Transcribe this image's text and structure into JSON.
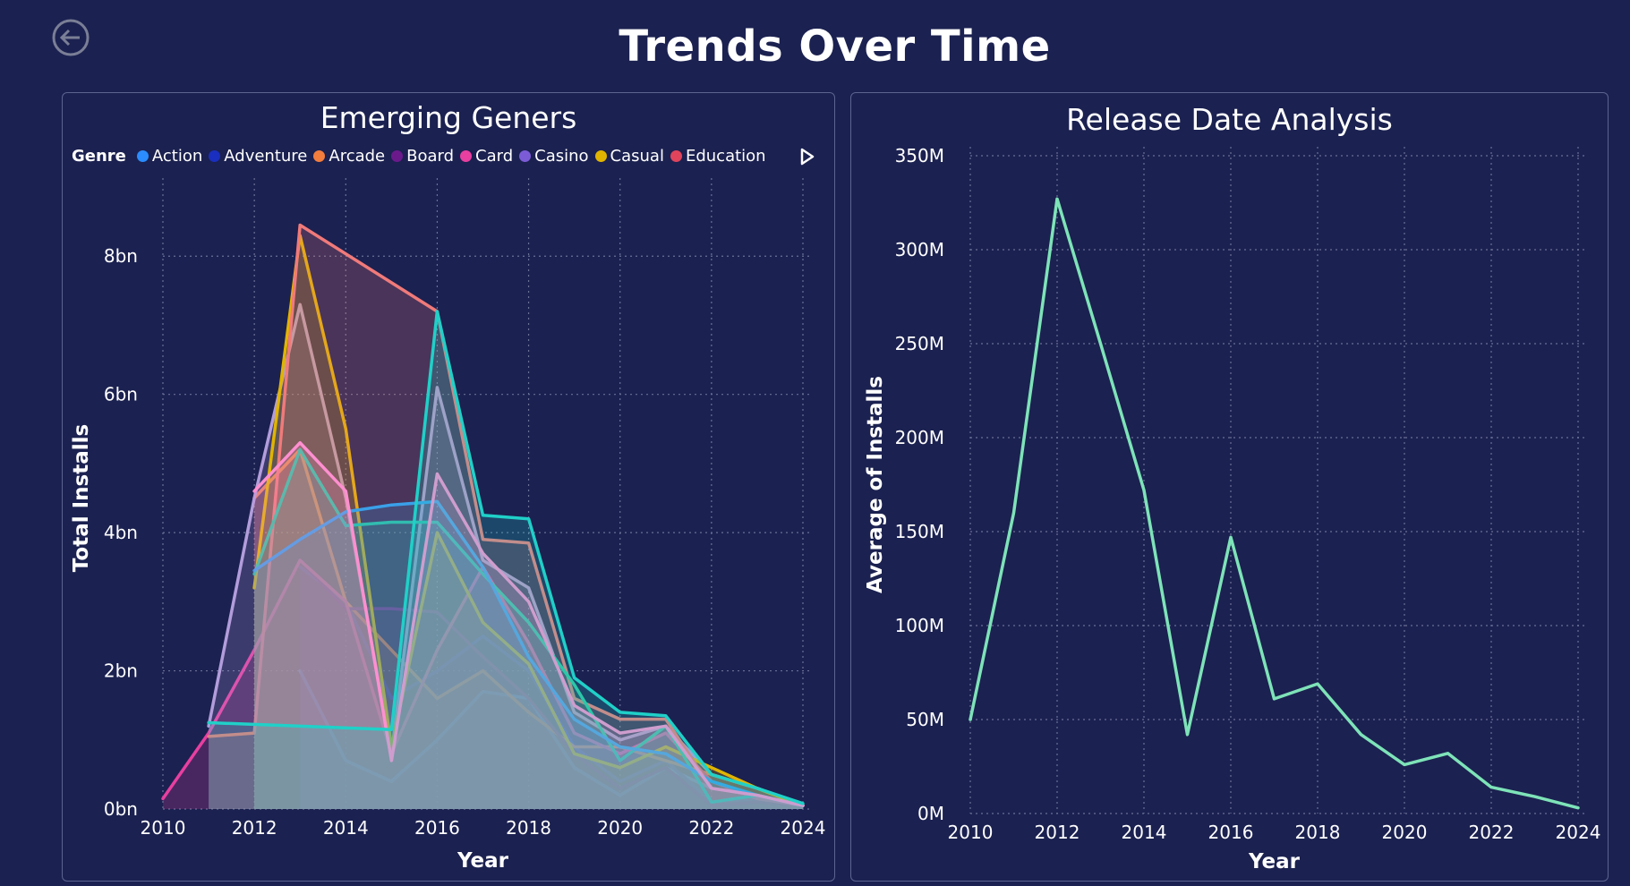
{
  "page": {
    "title": "Trends Over Time"
  },
  "icons": {
    "back": "back-arrow-icon",
    "legend_next": "play-right-icon"
  },
  "colors": {
    "background": "#1b2150",
    "panel_border": "#5d648f",
    "line_right": "#7ee3b8"
  },
  "chart_data": [
    {
      "type": "area",
      "title": "Emerging Geners",
      "xlabel": "Year",
      "ylabel": "Total Installs",
      "xlim": [
        2010,
        2024
      ],
      "ylim": [
        0,
        9
      ],
      "y_unit": "bn",
      "x_ticks": [
        "2010",
        "2012",
        "2014",
        "2016",
        "2018",
        "2020",
        "2022",
        "2024"
      ],
      "y_ticks": [
        "0bn",
        "2bn",
        "4bn",
        "6bn",
        "8bn"
      ],
      "grid": true,
      "legend": {
        "title": "Genre",
        "position": "top-left",
        "items": [
          {
            "name": "Action",
            "color": "#2a8cff"
          },
          {
            "name": "Adventure",
            "color": "#1a2fbf"
          },
          {
            "name": "Arcade",
            "color": "#f27d3d"
          },
          {
            "name": "Board",
            "color": "#6b1a8c"
          },
          {
            "name": "Card",
            "color": "#e83fa0"
          },
          {
            "name": "Casino",
            "color": "#7b5cd6"
          },
          {
            "name": "Casual",
            "color": "#e0b400"
          },
          {
            "name": "Education",
            "color": "#e0445c"
          }
        ]
      },
      "series": [
        {
          "name": "Action",
          "color": "#2a8cff",
          "points": [
            [
              2013,
              2.0
            ],
            [
              2014,
              0.7
            ],
            [
              2015,
              0.4
            ],
            [
              2016,
              1.0
            ],
            [
              2017,
              1.7
            ],
            [
              2018,
              1.6
            ],
            [
              2019,
              0.6
            ],
            [
              2020,
              0.2
            ],
            [
              2021,
              0.6
            ],
            [
              2022,
              0.3
            ],
            [
              2023,
              0.2
            ],
            [
              2024,
              0.05
            ]
          ]
        },
        {
          "name": "Adventure",
          "color": "#1a2fbf",
          "points": [
            [
              2013,
              3.5
            ],
            [
              2014,
              3.0
            ],
            [
              2015,
              1.6
            ],
            [
              2016,
              2.0
            ],
            [
              2017,
              2.5
            ],
            [
              2018,
              2.0
            ],
            [
              2019,
              0.9
            ],
            [
              2020,
              0.4
            ],
            [
              2021,
              0.7
            ],
            [
              2022,
              0.1
            ],
            [
              2023,
              0.15
            ],
            [
              2024,
              0.05
            ]
          ]
        },
        {
          "name": "Arcade",
          "color": "#f27d3d",
          "points": [
            [
              2012,
              4.5
            ],
            [
              2013,
              5.2
            ],
            [
              2014,
              3.0
            ],
            [
              2015,
              2.3
            ],
            [
              2016,
              1.6
            ],
            [
              2017,
              2.0
            ],
            [
              2018,
              1.4
            ],
            [
              2019,
              0.9
            ],
            [
              2020,
              0.9
            ],
            [
              2021,
              0.7
            ],
            [
              2022,
              0.5
            ],
            [
              2023,
              0.3
            ],
            [
              2024,
              0.05
            ]
          ]
        },
        {
          "name": "Board",
          "color": "#6b1a8c",
          "points": [
            [
              2013,
              3.6
            ],
            [
              2014,
              2.9
            ],
            [
              2015,
              2.9
            ],
            [
              2016,
              2.85
            ],
            [
              2017,
              2.2
            ],
            [
              2018,
              1.6
            ],
            [
              2019,
              0.8
            ],
            [
              2020,
              0.3
            ],
            [
              2021,
              0.6
            ],
            [
              2022,
              0.05
            ],
            [
              2023,
              0.1
            ],
            [
              2024,
              0.05
            ]
          ]
        },
        {
          "name": "Card",
          "color": "#e83fa0",
          "points": [
            [
              2010,
              0.15
            ],
            [
              2011,
              1.1
            ],
            [
              2012,
              2.3
            ],
            [
              2013,
              3.6
            ],
            [
              2014,
              3.0
            ],
            [
              2015,
              0.8
            ],
            [
              2016,
              2.3
            ],
            [
              2017,
              3.5
            ],
            [
              2018,
              2.4
            ],
            [
              2019,
              1.1
            ],
            [
              2020,
              0.8
            ],
            [
              2021,
              1.1
            ],
            [
              2022,
              0.4
            ],
            [
              2023,
              0.15
            ],
            [
              2024,
              0.05
            ]
          ]
        },
        {
          "name": "Casino",
          "color": "#b39ddb",
          "points": [
            [
              2011,
              1.2
            ],
            [
              2012,
              4.5
            ],
            [
              2013,
              7.3
            ],
            [
              2014,
              4.5
            ],
            [
              2015,
              0.8
            ],
            [
              2016,
              6.1
            ],
            [
              2017,
              3.6
            ],
            [
              2018,
              3.2
            ],
            [
              2019,
              1.4
            ],
            [
              2020,
              1.0
            ],
            [
              2021,
              1.2
            ],
            [
              2022,
              0.5
            ],
            [
              2023,
              0.3
            ],
            [
              2024,
              0.05
            ]
          ]
        },
        {
          "name": "Casual",
          "color": "#e0b400",
          "points": [
            [
              2012,
              3.2
            ],
            [
              2013,
              8.3
            ],
            [
              2014,
              5.5
            ],
            [
              2015,
              0.9
            ],
            [
              2016,
              4.0
            ],
            [
              2017,
              2.7
            ],
            [
              2018,
              2.1
            ],
            [
              2019,
              0.8
            ],
            [
              2020,
              0.6
            ],
            [
              2021,
              0.9
            ],
            [
              2022,
              0.6
            ],
            [
              2023,
              0.3
            ],
            [
              2024,
              0.05
            ]
          ]
        },
        {
          "name": "Education",
          "color": "#f07a7a",
          "points": [
            [
              2011,
              1.05
            ],
            [
              2012,
              1.1
            ],
            [
              2013,
              8.45
            ],
            [
              2016,
              7.2
            ],
            [
              2017,
              3.9
            ],
            [
              2018,
              3.85
            ],
            [
              2019,
              1.6
            ],
            [
              2020,
              1.3
            ],
            [
              2021,
              1.3
            ],
            [
              2022,
              0.3
            ],
            [
              2023,
              0.2
            ],
            [
              2024,
              0.05
            ]
          ]
        },
        {
          "color": "#2fc4a0",
          "points": [
            [
              2012,
              3.4
            ],
            [
              2013,
              5.2
            ],
            [
              2014,
              4.1
            ],
            [
              2015,
              4.15
            ],
            [
              2016,
              4.15
            ],
            [
              2017,
              3.4
            ],
            [
              2018,
              2.7
            ],
            [
              2019,
              1.8
            ],
            [
              2020,
              0.7
            ],
            [
              2021,
              1.2
            ],
            [
              2022,
              0.1
            ],
            [
              2023,
              0.2
            ],
            [
              2024,
              0.05
            ]
          ]
        },
        {
          "color": "#3aa0e8",
          "points": [
            [
              2012,
              3.45
            ],
            [
              2013,
              3.9
            ],
            [
              2014,
              4.3
            ],
            [
              2015,
              4.4
            ],
            [
              2016,
              4.45
            ],
            [
              2017,
              3.5
            ],
            [
              2018,
              2.2
            ],
            [
              2019,
              1.3
            ],
            [
              2020,
              0.9
            ],
            [
              2021,
              0.8
            ],
            [
              2022,
              0.4
            ],
            [
              2023,
              0.2
            ],
            [
              2024,
              0.05
            ]
          ]
        },
        {
          "color": "#ff8fd0",
          "points": [
            [
              2012,
              4.6
            ],
            [
              2013,
              5.3
            ],
            [
              2014,
              4.6
            ],
            [
              2015,
              0.7
            ],
            [
              2016,
              4.85
            ],
            [
              2017,
              3.7
            ],
            [
              2018,
              3.0
            ],
            [
              2019,
              1.5
            ],
            [
              2020,
              1.1
            ],
            [
              2021,
              1.2
            ],
            [
              2022,
              0.3
            ],
            [
              2023,
              0.2
            ],
            [
              2024,
              0.05
            ]
          ]
        },
        {
          "color": "#20d0c8",
          "points": [
            [
              2011,
              1.25
            ],
            [
              2015,
              1.15
            ],
            [
              2016,
              7.2
            ],
            [
              2017,
              4.25
            ],
            [
              2018,
              4.2
            ],
            [
              2019,
              1.9
            ],
            [
              2020,
              1.4
            ],
            [
              2021,
              1.35
            ],
            [
              2022,
              0.5
            ],
            [
              2023,
              0.3
            ],
            [
              2024,
              0.08
            ]
          ]
        }
      ]
    },
    {
      "type": "line",
      "title": "Release Date Analysis",
      "xlabel": "Year",
      "ylabel": "Average of Installs",
      "xlim": [
        2010,
        2024
      ],
      "ylim": [
        0,
        350
      ],
      "y_unit": "M",
      "x_ticks": [
        "2010",
        "2012",
        "2014",
        "2016",
        "2018",
        "2020",
        "2022",
        "2024"
      ],
      "y_ticks": [
        "0M",
        "50M",
        "100M",
        "150M",
        "200M",
        "250M",
        "300M",
        "350M"
      ],
      "grid": true,
      "x": [
        2010,
        2011,
        2012,
        2013,
        2014,
        2015,
        2016,
        2017,
        2018,
        2019,
        2020,
        2021,
        2022,
        2023,
        2024
      ],
      "values": [
        50,
        160,
        327,
        250,
        172,
        42,
        147,
        61,
        69,
        42,
        26,
        32,
        14,
        9,
        3
      ],
      "color": "#7ee3b8"
    }
  ]
}
